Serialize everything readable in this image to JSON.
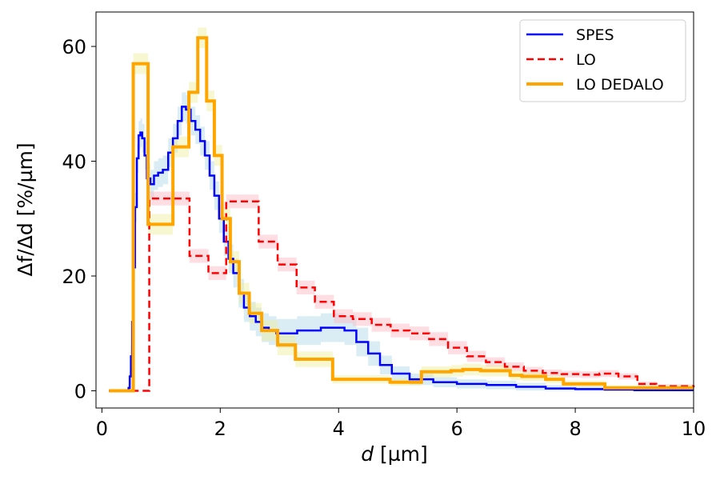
{
  "chart_data": {
    "type": "line",
    "title": "",
    "xlabel_italic": "d",
    "xlabel_unit": " [µm]",
    "ylabel": "Δf/Δd [%/µm]",
    "xlim": [
      -0.1,
      10
    ],
    "ylim": [
      -3,
      66
    ],
    "xticks": [
      0,
      2,
      4,
      6,
      8,
      10
    ],
    "yticks": [
      0,
      20,
      40,
      60
    ],
    "grid": false,
    "legend_position": "top-right",
    "series": [
      {
        "name": "SPES",
        "color": "#0000ff",
        "style": "solid",
        "band_color": "#add8e6",
        "band": 2.5,
        "x": [
          0.12,
          0.45,
          0.47,
          0.49,
          0.51,
          0.53,
          0.56,
          0.59,
          0.62,
          0.65,
          0.68,
          0.72,
          0.76,
          0.82,
          0.88,
          0.95,
          1.03,
          1.12,
          1.2,
          1.28,
          1.35,
          1.42,
          1.5,
          1.58,
          1.66,
          1.74,
          1.82,
          1.9,
          1.98,
          2.06,
          2.14,
          2.22,
          2.31,
          2.4,
          2.5,
          2.6,
          2.7,
          2.82,
          2.95,
          3.1,
          3.3,
          3.5,
          3.7,
          3.9,
          4.1,
          4.3,
          4.5,
          4.7,
          4.9,
          5.2,
          5.6,
          6.0,
          6.5,
          7.0,
          7.5,
          8.0,
          8.5,
          9.0,
          10.0
        ],
        "y": [
          0,
          0.5,
          2.5,
          6,
          12,
          21.5,
          32,
          40.5,
          44.5,
          45,
          44,
          41,
          37,
          36,
          37.5,
          38,
          38.5,
          41.5,
          44,
          47,
          49.5,
          49,
          47,
          45.5,
          43.5,
          41,
          37.5,
          34,
          30,
          26,
          23,
          20.5,
          17,
          14.5,
          13,
          12,
          11,
          10.5,
          10,
          10,
          10.5,
          10.5,
          11,
          11,
          10.5,
          8.5,
          6.5,
          4.5,
          3,
          2,
          1.5,
          1.2,
          1.0,
          0.7,
          0.4,
          0.3,
          0.2,
          0.1,
          0.1
        ]
      },
      {
        "name": "LO",
        "color": "#ff0000",
        "style": "dashed",
        "band_color": "#ffb6c1",
        "band": 1.2,
        "x": [
          0.12,
          0.76,
          0.8,
          1.48,
          1.8,
          2.1,
          2.65,
          2.97,
          3.29,
          3.6,
          3.92,
          4.24,
          4.56,
          4.88,
          5.2,
          5.53,
          5.85,
          6.17,
          6.49,
          6.81,
          7.13,
          7.45,
          7.77,
          8.09,
          8.41,
          8.73,
          9.05,
          9.37,
          10.0
        ],
        "y": [
          0,
          0,
          33.5,
          23.5,
          20.5,
          33,
          26,
          22,
          18,
          15.5,
          13,
          12.5,
          11.5,
          10.5,
          10,
          9,
          7.5,
          6,
          5,
          4.2,
          3.5,
          3.1,
          2.9,
          2.8,
          3,
          2.5,
          1.2,
          0.8,
          0.6
        ]
      },
      {
        "name": "LO DEDALO",
        "color": "#ffa500",
        "style": "solid",
        "band_color": "#eeee99",
        "band": 1.8,
        "x": [
          0.12,
          0.53,
          0.78,
          1.2,
          1.47,
          1.62,
          1.77,
          1.9,
          2.03,
          2.17,
          2.32,
          2.49,
          2.7,
          2.97,
          3.27,
          3.9,
          4.87,
          5.4,
          5.9,
          6.1,
          6.4,
          6.9,
          7.1,
          7.5,
          7.8,
          8.5,
          9.0,
          10.0
        ],
        "y": [
          0,
          57,
          29,
          42.5,
          52,
          61.5,
          50.5,
          41,
          30,
          22.5,
          17,
          13.5,
          10.5,
          8,
          5.5,
          2,
          1.5,
          3.3,
          3.5,
          3.7,
          3.5,
          2.7,
          2.5,
          2.0,
          1.2,
          0.5,
          0.5,
          0.5
        ]
      }
    ]
  }
}
